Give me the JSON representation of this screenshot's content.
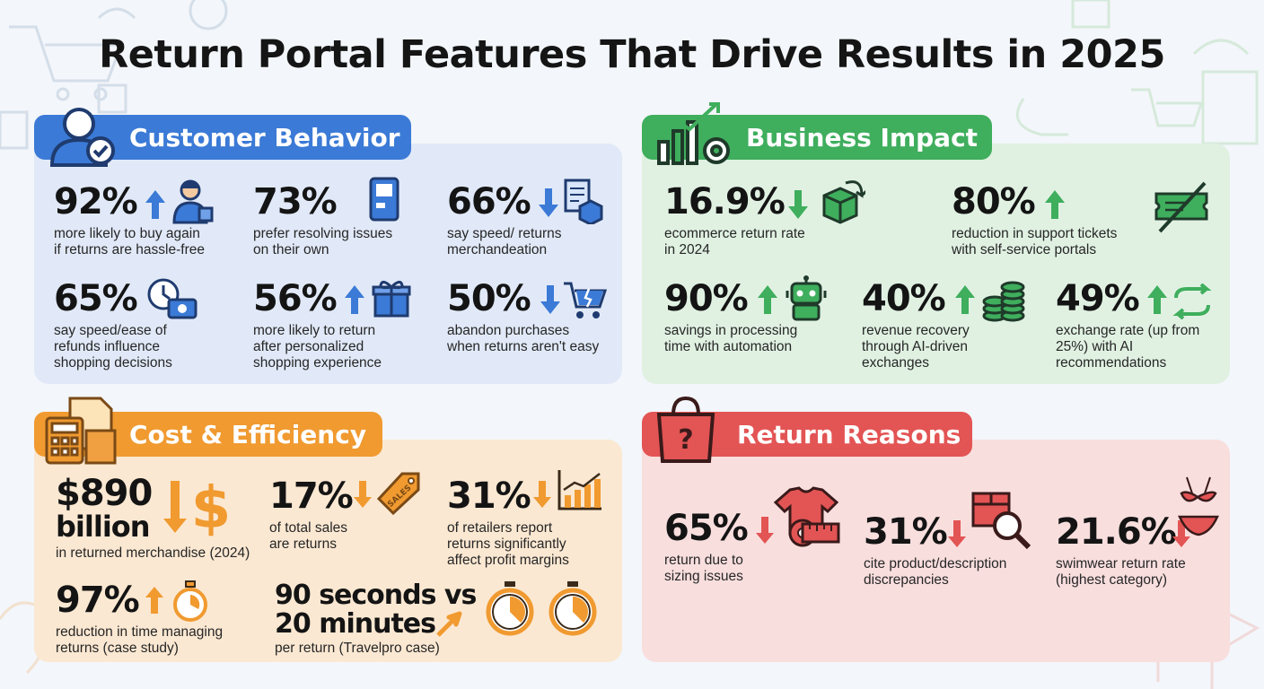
{
  "title": "Return Portal Features That Drive Results in 2025",
  "colors": {
    "blue": "#3b7ad6",
    "green": "#3fae5d",
    "orange": "#f09a30",
    "red": "#e35454",
    "navy": "#1f3b6f"
  },
  "sections": {
    "customer_behavior": {
      "title": "Customer Behavior",
      "icon": "user-check-icon",
      "stats": [
        {
          "value": "92%",
          "desc": [
            "more likely to buy again",
            "if returns are hassle-free"
          ],
          "trend": "up",
          "icon": "shopper-icon"
        },
        {
          "value": "73%",
          "desc": [
            "prefer resolving issues",
            "on their own"
          ],
          "trend": "",
          "icon": "kiosk-icon"
        },
        {
          "value": "66%",
          "desc": [
            "say speed/ returns",
            "merchandeation"
          ],
          "trend": "down",
          "icon": "document-box-icon"
        },
        {
          "value": "65%",
          "desc": [
            "say speed/ease of",
            "refunds influence",
            "shopping decisions"
          ],
          "trend": "",
          "icon": "clock-money-icon"
        },
        {
          "value": "56%",
          "desc": [
            "more likely to return",
            "after personalized",
            "shopping experience"
          ],
          "trend": "up",
          "icon": "gift-icon"
        },
        {
          "value": "50%",
          "desc": [
            "abandon purchases",
            "when returns aren't easy"
          ],
          "trend": "down",
          "icon": "broken-cart-icon"
        }
      ]
    },
    "business_impact": {
      "title": "Business Impact",
      "icon": "growth-chart-gear-icon",
      "stats": [
        {
          "value": "16.9%",
          "desc": [
            "ecommerce return rate",
            "in 2024"
          ],
          "trend": "down",
          "icon": "return-box-icon"
        },
        {
          "value": "80%",
          "desc": [
            "reduction in support tickets",
            "with self-service portals"
          ],
          "trend": "up",
          "icon": "ticket-crossed-icon"
        },
        {
          "value": "90%",
          "desc": [
            "savings in processing",
            "time with automation"
          ],
          "trend": "up",
          "icon": "robot-icon"
        },
        {
          "value": "40%",
          "desc": [
            "revenue recovery",
            "through AI-driven",
            "exchanges"
          ],
          "trend": "up",
          "icon": "coin-stack-icon"
        },
        {
          "value": "49%",
          "desc": [
            "exchange rate (up from",
            "25%) with AI",
            "recommendations"
          ],
          "trend": "up",
          "icon": "exchange-arrows-icon"
        }
      ]
    },
    "cost_efficiency": {
      "title": "Cost & Efficiency",
      "icon": "calculator-documents-icon",
      "stats": [
        {
          "value": "$890",
          "value2": "billion",
          "desc": [
            "in returned merchandise (2024)"
          ],
          "trend": "down",
          "icon": "dollar-icon"
        },
        {
          "value": "17%",
          "desc": [
            "of total sales",
            "are returns"
          ],
          "trend": "down",
          "icon": "sales-tag-icon"
        },
        {
          "value": "31%",
          "desc": [
            "of retailers report",
            "returns significantly",
            "affect profit margins"
          ],
          "trend": "down",
          "icon": "bar-chart-icon"
        },
        {
          "value": "97%",
          "desc": [
            "reduction in time managing",
            "returns (case study)"
          ],
          "trend": "up",
          "icon": "stopwatch-icon"
        },
        {
          "value": "90 seconds vs",
          "value2": "20 minutes",
          "desc": [
            "per return (Travelpro case)"
          ],
          "trend": "up",
          "icon": "two-stopwatches-icon"
        }
      ]
    },
    "return_reasons": {
      "title": "Return Reasons",
      "icon": "question-bag-icon",
      "stats": [
        {
          "value": "65%",
          "desc": [
            "return due to",
            "sizing issues"
          ],
          "trend": "down",
          "icon": "shirt-tape-icon"
        },
        {
          "value": "31%",
          "desc": [
            "cite product/description",
            "discrepancies"
          ],
          "trend": "down",
          "icon": "box-magnifier-icon"
        },
        {
          "value": "21.6%",
          "desc": [
            "swimwear return rate",
            "(highest category)"
          ],
          "trend": "down",
          "icon": "swimwear-icon"
        }
      ]
    }
  }
}
